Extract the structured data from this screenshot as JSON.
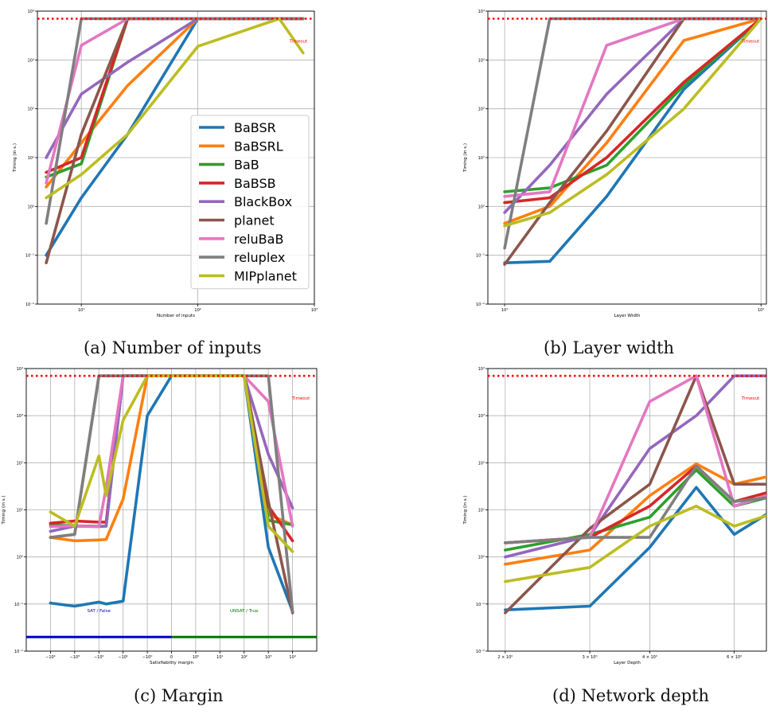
{
  "figure": {
    "caption_a": "(a) Number of inputs",
    "caption_b": "(b) Layer width",
    "caption_c": "(c) Margin",
    "caption_d": "(d) Network depth"
  },
  "colors": {
    "BaBSR": "#1f77b4",
    "BaBSRL": "#ff7f0e",
    "BaB": "#2ca02c",
    "BaBSB": "#d62728",
    "BlackBox": "#9467bd",
    "planet": "#8c564b",
    "reluBaB": "#e377c2",
    "reluplex": "#7f7f7f",
    "MIPplanet": "#bcbd22",
    "timeout": "#ff0000",
    "sat_line": "#0000cc",
    "unsat_line": "#007700"
  },
  "chart_data": [
    {
      "type": "line",
      "id": "a",
      "xlabel": "Number of inputs",
      "ylabel": "Timing (in s.)",
      "yscale": "log",
      "ylim": [
        0.01,
        10000
      ],
      "xscale": "log",
      "xlim": [
        4.2,
        1000
      ],
      "timeout_label": "Timeout",
      "x_ticks": [
        {
          "v": 10,
          "label": "10¹"
        },
        {
          "v": 100,
          "label": "10²"
        },
        {
          "v": 1000,
          "label": "10³"
        }
      ],
      "y_ticks": [
        {
          "v": 0.01,
          "label": "10⁻²"
        },
        {
          "v": 0.1,
          "label": "10⁻¹"
        },
        {
          "v": 1,
          "label": "10⁰"
        },
        {
          "v": 10,
          "label": "10¹"
        },
        {
          "v": 100,
          "label": "10²"
        },
        {
          "v": 1000,
          "label": "10³"
        },
        {
          "v": 10000,
          "label": "10⁴"
        }
      ],
      "legend": "center-right",
      "series": [
        {
          "name": "BaBSR",
          "x": [
            5,
            10,
            25,
            100,
            500,
            800
          ],
          "y": [
            0.1,
            1.5,
            30,
            7000,
            7000,
            7000
          ]
        },
        {
          "name": "BaBSRL",
          "x": [
            5,
            10,
            25,
            100,
            500,
            800
          ],
          "y": [
            2.5,
            20,
            300,
            7000,
            7000,
            7000
          ]
        },
        {
          "name": "BaB",
          "x": [
            5,
            10,
            25,
            100,
            500,
            800
          ],
          "y": [
            4,
            7.5,
            7000,
            7000,
            7000,
            7000
          ]
        },
        {
          "name": "BaBSB",
          "x": [
            5,
            10,
            25,
            100,
            500,
            800
          ],
          "y": [
            5,
            10,
            7000,
            7000,
            7000,
            7000
          ]
        },
        {
          "name": "BlackBox",
          "x": [
            5,
            10,
            25,
            100,
            500,
            800
          ],
          "y": [
            10,
            200,
            900,
            7000,
            7000,
            7000
          ]
        },
        {
          "name": "planet",
          "x": [
            5,
            10,
            25,
            100,
            500,
            800
          ],
          "y": [
            0.07,
            30,
            7000,
            7000,
            7000,
            7000
          ]
        },
        {
          "name": "reluBaB",
          "x": [
            5,
            10,
            25,
            100,
            500,
            800
          ],
          "y": [
            3,
            2000,
            7000,
            7000,
            7000,
            7000
          ]
        },
        {
          "name": "reluplex",
          "x": [
            5,
            10,
            25,
            100,
            500,
            800
          ],
          "y": [
            0.45,
            7000,
            7000,
            7000,
            7000,
            7000
          ]
        },
        {
          "name": "MIPplanet",
          "x": [
            5,
            10,
            25,
            100,
            500,
            800
          ],
          "y": [
            1.5,
            4.5,
            30,
            1900,
            7000,
            1400
          ]
        }
      ]
    },
    {
      "type": "line",
      "id": "b",
      "xlabel": "Layer Width",
      "ylabel": "Timing (in s.)",
      "yscale": "log",
      "ylim": [
        0.01,
        10000
      ],
      "xscale": "log",
      "xlim": [
        8.6,
        105
      ],
      "timeout_label": "Timeout",
      "x_ticks": [
        {
          "v": 10,
          "label": "10¹"
        },
        {
          "v": 100,
          "label": "10²"
        }
      ],
      "y_ticks": [
        {
          "v": 0.01,
          "label": "10⁻²"
        },
        {
          "v": 0.1,
          "label": "10⁻¹"
        },
        {
          "v": 1,
          "label": "10⁰"
        },
        {
          "v": 10,
          "label": "10¹"
        },
        {
          "v": 100,
          "label": "10²"
        },
        {
          "v": 1000,
          "label": "10³"
        },
        {
          "v": 10000,
          "label": "10⁴"
        }
      ],
      "series": [
        {
          "name": "BaBSR",
          "x": [
            10,
            15,
            25,
            50,
            100
          ],
          "y": [
            0.07,
            0.075,
            1.6,
            250,
            7000
          ]
        },
        {
          "name": "BaBSRL",
          "x": [
            10,
            15,
            25,
            50,
            100
          ],
          "y": [
            0.45,
            1,
            20,
            2500,
            7000
          ]
        },
        {
          "name": "BaB",
          "x": [
            10,
            15,
            25,
            50,
            100
          ],
          "y": [
            2,
            2.4,
            7,
            300,
            7000
          ]
        },
        {
          "name": "BaBSB",
          "x": [
            10,
            15,
            25,
            50,
            100
          ],
          "y": [
            1.2,
            1.5,
            10,
            350,
            7000
          ]
        },
        {
          "name": "BlackBox",
          "x": [
            10,
            15,
            25,
            50,
            100
          ],
          "y": [
            0.75,
            7,
            200,
            7000,
            7000
          ]
        },
        {
          "name": "planet",
          "x": [
            10,
            15,
            25,
            50,
            100
          ],
          "y": [
            0.065,
            1.2,
            35,
            7000,
            7000
          ]
        },
        {
          "name": "reluBaB",
          "x": [
            10,
            15,
            25,
            50,
            100
          ],
          "y": [
            1.6,
            2,
            2000,
            7000,
            7000
          ]
        },
        {
          "name": "reluplex",
          "x": [
            10,
            15,
            25,
            50,
            100
          ],
          "y": [
            0.14,
            7000,
            7000,
            7000,
            7000
          ]
        },
        {
          "name": "MIPplanet",
          "x": [
            10,
            15,
            25,
            50,
            100
          ],
          "y": [
            0.4,
            0.75,
            4.5,
            100,
            7000
          ]
        }
      ]
    },
    {
      "type": "line",
      "id": "c",
      "xlabel": "Satisfiability margin",
      "ylabel": "Timing (in s.)",
      "yscale": "log",
      "ylim": [
        0.01,
        10000
      ],
      "xscale": "symlog",
      "timeout_label": "Timeout",
      "sat_label": "SAT / False",
      "unsat_label": "UNSAT / True",
      "x_ticks": [
        {
          "v": -10000,
          "label": "−10⁴"
        },
        {
          "v": -1000,
          "label": "−10³"
        },
        {
          "v": -100,
          "label": "−10²"
        },
        {
          "v": -10,
          "label": "−10¹"
        },
        {
          "v": -1,
          "label": "−10⁰"
        },
        {
          "v": 0,
          "label": "0"
        },
        {
          "v": 1,
          "label": "10⁰"
        },
        {
          "v": 10,
          "label": "10¹"
        },
        {
          "v": 100,
          "label": "10²"
        },
        {
          "v": 1000,
          "label": "10³"
        },
        {
          "v": 10000,
          "label": "10⁴"
        }
      ],
      "y_ticks": [
        {
          "v": 0.01,
          "label": "10⁻²"
        },
        {
          "v": 0.1,
          "label": "10⁻¹"
        },
        {
          "v": 1,
          "label": "10⁰"
        },
        {
          "v": 10,
          "label": "10¹"
        },
        {
          "v": 100,
          "label": "10²"
        },
        {
          "v": 1000,
          "label": "10³"
        },
        {
          "v": 10000,
          "label": "10⁴"
        }
      ],
      "series": [
        {
          "name": "BaBSR",
          "x": [
            -10000,
            -1000,
            -100,
            -50,
            -10,
            -1,
            0,
            1,
            10,
            100,
            1000,
            10000
          ],
          "y": [
            0.105,
            0.09,
            0.11,
            0.1,
            0.115,
            1000,
            7000,
            7000,
            7000,
            7000,
            1.6,
            0.07
          ]
        },
        {
          "name": "BaBSRL",
          "x": [
            -10000,
            -1000,
            -100,
            -50,
            -10,
            -1,
            0,
            1,
            10,
            100,
            1000,
            10000
          ],
          "y": [
            2.6,
            2.2,
            2.3,
            2.35,
            17,
            7000,
            7000,
            7000,
            7000,
            7000,
            8,
            4.8
          ]
        },
        {
          "name": "BaB",
          "x": [
            -10000,
            -1000,
            -100,
            -50,
            -10,
            -1,
            0,
            1,
            10,
            100,
            1000,
            10000
          ],
          "y": [
            4.8,
            4.6,
            4.5,
            4.5,
            7000,
            7000,
            7000,
            7000,
            7000,
            7000,
            6,
            4.8
          ]
        },
        {
          "name": "BaBSB",
          "x": [
            -10000,
            -1000,
            -100,
            -50,
            -10,
            -1,
            0,
            1,
            10,
            100,
            1000,
            10000
          ],
          "y": [
            5.2,
            5.8,
            5.5,
            5.5,
            7000,
            7000,
            7000,
            7000,
            7000,
            7000,
            12,
            2.2
          ]
        },
        {
          "name": "BlackBox",
          "x": [
            -10000,
            -1000,
            -100,
            -50,
            -10,
            -1,
            0,
            1,
            10,
            100,
            1000,
            10000
          ],
          "y": [
            3.5,
            4.5,
            4.4,
            4.5,
            7000,
            7000,
            7000,
            7000,
            7000,
            7000,
            150,
            11
          ]
        },
        {
          "name": "planet",
          "x": [
            -10000,
            -1000,
            -100,
            -50,
            -10,
            -1,
            0,
            1,
            10,
            100,
            1000,
            10000
          ],
          "y": [
            2.6,
            3,
            7000,
            7000,
            7000,
            7000,
            7000,
            7000,
            7000,
            7000,
            15,
            0.065
          ]
        },
        {
          "name": "reluBaB",
          "x": [
            -10000,
            -1000,
            -100,
            -50,
            -10,
            -1,
            0,
            1,
            10,
            100,
            1000,
            10000
          ],
          "y": [
            4.4,
            4.6,
            4.4,
            30,
            7000,
            7000,
            7000,
            7000,
            7000,
            7000,
            2000,
            4.5
          ]
        },
        {
          "name": "reluplex",
          "x": [
            -10000,
            -1000,
            -100,
            -50,
            -10,
            -1,
            0,
            1,
            10,
            100,
            1000,
            10000
          ],
          "y": [
            2.6,
            3,
            7000,
            7000,
            7000,
            7000,
            7000,
            7000,
            7000,
            7000,
            7000,
            0.07
          ]
        },
        {
          "name": "MIPplanet",
          "x": [
            -10000,
            -1000,
            -100,
            -50,
            -10,
            -1,
            0,
            1,
            10,
            100,
            1000,
            10000
          ],
          "y": [
            9,
            4.5,
            140,
            20,
            800,
            7000,
            7000,
            7000,
            7000,
            7000,
            4.5,
            1.3
          ]
        }
      ]
    },
    {
      "type": "line",
      "id": "d",
      "xlabel": "Layer Depth",
      "ylabel": "Timing (in s.)",
      "yscale": "log",
      "ylim": [
        0.01,
        10000
      ],
      "xscale": "log",
      "xlim": [
        1.84,
        7.0
      ],
      "timeout_label": "Timeout",
      "x_ticks": [
        {
          "v": 2,
          "label": "2 × 10⁰"
        },
        {
          "v": 3,
          "label": "3 × 10⁰"
        },
        {
          "v": 4,
          "label": "4 × 10⁰"
        },
        {
          "v": 6,
          "label": "6 × 10⁰"
        }
      ],
      "y_ticks": [
        {
          "v": 0.01,
          "label": "10⁻²"
        },
        {
          "v": 0.1,
          "label": "10⁻¹"
        },
        {
          "v": 1,
          "label": "10⁰"
        },
        {
          "v": 10,
          "label": "10¹"
        },
        {
          "v": 100,
          "label": "10²"
        },
        {
          "v": 1000,
          "label": "10³"
        },
        {
          "v": 10000,
          "label": "10⁴"
        }
      ],
      "series": [
        {
          "name": "BaBSR",
          "x": [
            2,
            3,
            4,
            5,
            6,
            7
          ],
          "y": [
            0.075,
            0.09,
            1.6,
            30,
            3,
            8
          ]
        },
        {
          "name": "BaBSRL",
          "x": [
            2,
            3,
            4,
            5,
            6,
            7
          ],
          "y": [
            0.7,
            1.4,
            20,
            95,
            35,
            50
          ]
        },
        {
          "name": "BaB",
          "x": [
            2,
            3,
            4,
            5,
            6,
            7
          ],
          "y": [
            1.4,
            3,
            7,
            70,
            12,
            18
          ]
        },
        {
          "name": "BaBSB",
          "x": [
            2,
            3,
            4,
            5,
            6,
            7
          ],
          "y": [
            2,
            2.6,
            12,
            85,
            15,
            23
          ]
        },
        {
          "name": "BlackBox",
          "x": [
            2,
            3,
            4,
            5,
            6,
            7
          ],
          "y": [
            1,
            2.8,
            200,
            1000,
            7000,
            7000
          ]
        },
        {
          "name": "planet",
          "x": [
            2,
            3,
            4,
            5,
            6,
            7
          ],
          "y": [
            0.065,
            4,
            35,
            7000,
            35,
            35
          ]
        },
        {
          "name": "reluBaB",
          "x": [
            2,
            3,
            4,
            5,
            6,
            7
          ],
          "y": [
            2,
            2.6,
            2000,
            7000,
            12,
            20
          ]
        },
        {
          "name": "reluplex",
          "x": [
            2,
            3,
            4,
            5,
            6,
            7
          ],
          "y": [
            2,
            2.6,
            2.6,
            85,
            15,
            18
          ]
        },
        {
          "name": "MIPplanet",
          "x": [
            2,
            3,
            4,
            5,
            6,
            7
          ],
          "y": [
            0.3,
            0.6,
            4.5,
            12,
            4.5,
            7.5
          ]
        }
      ]
    }
  ]
}
